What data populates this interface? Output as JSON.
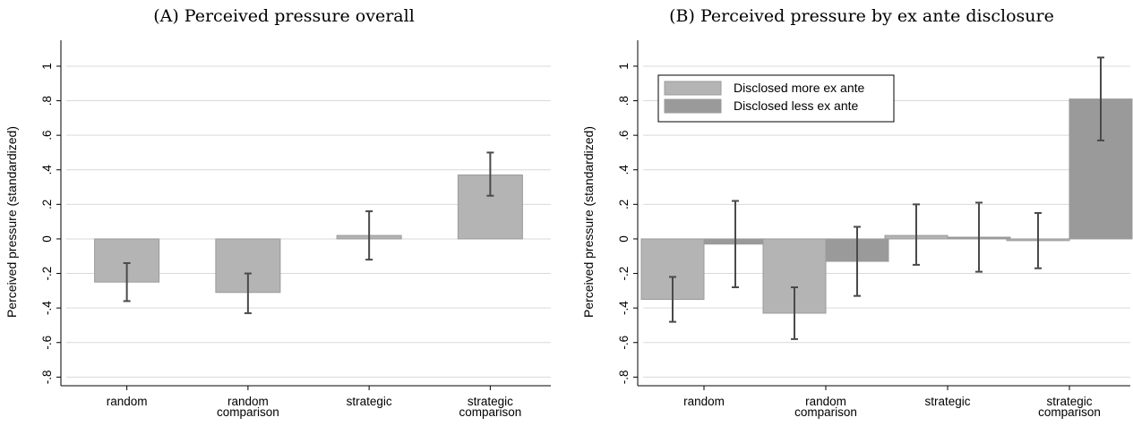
{
  "chart_data": [
    {
      "type": "bar",
      "title": "(A) Perceived pressure overall",
      "ylabel": "Perceived pressure (standardized)",
      "ylim": [
        -0.85,
        1.15
      ],
      "yticks": [
        -0.8,
        -0.6,
        -0.4,
        -0.2,
        0,
        0.2,
        0.4,
        0.6,
        0.8,
        1
      ],
      "ytick_labels": [
        "-.8",
        "-.6",
        "-.4",
        "-.2",
        "0",
        ".2",
        ".4",
        ".6",
        ".8",
        "1"
      ],
      "grid": true,
      "categories": [
        [
          "random"
        ],
        [
          "random",
          "comparison"
        ],
        [
          "strategic"
        ],
        [
          "strategic",
          "comparison"
        ]
      ],
      "series": [
        {
          "values": [
            -0.25,
            -0.31,
            0.02,
            0.37
          ],
          "ci_low": [
            -0.36,
            -0.43,
            -0.12,
            0.25
          ],
          "ci_high": [
            -0.14,
            -0.2,
            0.16,
            0.5
          ],
          "color": "#b4b4b4"
        }
      ]
    },
    {
      "type": "bar",
      "title": "(B) Perceived pressure by ex ante disclosure",
      "ylabel": "Perceived pressure (standardized)",
      "ylim": [
        -0.85,
        1.15
      ],
      "yticks": [
        -0.8,
        -0.6,
        -0.4,
        -0.2,
        0,
        0.2,
        0.4,
        0.6,
        0.8,
        1
      ],
      "ytick_labels": [
        "-.8",
        "-.6",
        "-.4",
        "-.2",
        "0",
        ".2",
        ".4",
        ".6",
        ".8",
        "1"
      ],
      "grid": true,
      "legend_position": "top-left",
      "categories": [
        [
          "random"
        ],
        [
          "random",
          "comparison"
        ],
        [
          "strategic"
        ],
        [
          "strategic",
          "comparison"
        ]
      ],
      "series": [
        {
          "name": "Disclosed more ex ante",
          "values": [
            -0.35,
            -0.43,
            0.02,
            -0.01
          ],
          "ci_low": [
            -0.48,
            -0.58,
            -0.15,
            -0.17
          ],
          "ci_high": [
            -0.22,
            -0.28,
            0.2,
            0.15
          ],
          "color": "#b4b4b4"
        },
        {
          "name": "Disclosed less ex ante",
          "values": [
            -0.03,
            -0.13,
            0.01,
            0.81
          ],
          "ci_low": [
            -0.28,
            -0.33,
            -0.19,
            0.57
          ],
          "ci_high": [
            0.22,
            0.07,
            0.21,
            1.05
          ],
          "color": "#9a9a9a"
        }
      ]
    }
  ]
}
